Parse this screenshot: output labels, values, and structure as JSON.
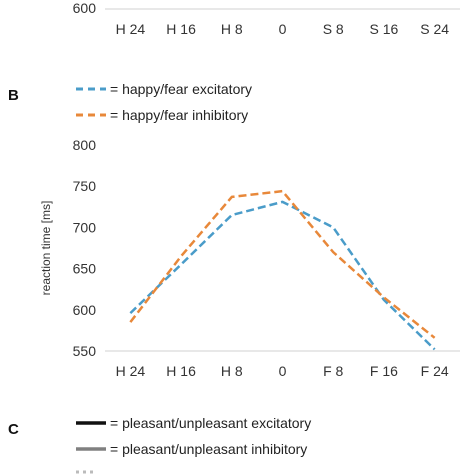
{
  "top_partial": {
    "y_tick": "600",
    "x_ticks": [
      "H 24",
      "H 16",
      "H 8",
      "0",
      "S 8",
      "S 16",
      "S 24"
    ]
  },
  "panel_b": {
    "label": "B",
    "legend": [
      {
        "text": "= happy/fear excitatory",
        "color": "#4a9cc9",
        "dash": true
      },
      {
        "text": "= happy/fear inhibitory",
        "color": "#e8883a",
        "dash": true
      }
    ]
  },
  "panel_c": {
    "label": "C",
    "legend": [
      {
        "text": "= pleasant/unpleasant excitatory",
        "color": "#111111"
      },
      {
        "text": "= pleasant/unpleasant inhibitory",
        "color": "#808080"
      }
    ]
  },
  "chart_data": {
    "type": "line",
    "ylabel": "reaction time [ms]",
    "categories": [
      "H 24",
      "H 16",
      "H 8",
      "0",
      "F 8",
      "F 16",
      "F 24"
    ],
    "y_ticks": [
      550,
      600,
      650,
      700,
      750,
      800
    ],
    "ylim": [
      550,
      800
    ],
    "grid": false,
    "legend_position": "top-left",
    "series": [
      {
        "name": "happy/fear excitatory",
        "color": "#4a9cc9",
        "values": [
          596,
          655,
          715,
          731,
          700,
          612,
          552
        ]
      },
      {
        "name": "happy/fear inhibitory",
        "color": "#e8883a",
        "values": [
          585,
          665,
          737,
          744,
          670,
          615,
          566
        ]
      }
    ]
  }
}
